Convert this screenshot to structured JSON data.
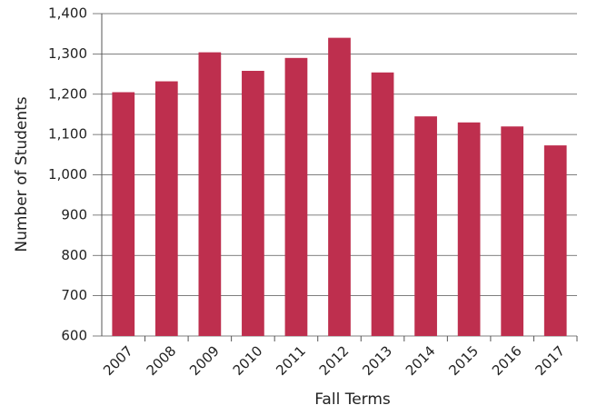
{
  "chart_data": {
    "type": "bar",
    "categories": [
      "2007",
      "2008",
      "2009",
      "2010",
      "2011",
      "2012",
      "2013",
      "2014",
      "2015",
      "2016",
      "2017"
    ],
    "values": [
      1205,
      1232,
      1304,
      1258,
      1290,
      1340,
      1254,
      1145,
      1130,
      1120,
      1073
    ],
    "color": "#be2f4e",
    "ylim": [
      600,
      1400
    ],
    "yticks": [
      600,
      700,
      800,
      900,
      {
        "value": 1000,
        "label": "1,000"
      },
      {
        "value": 1100,
        "label": "1,100"
      },
      {
        "value": 1200,
        "label": "1,200"
      },
      {
        "value": 1300,
        "label": "1,300"
      },
      {
        "value": 1400,
        "label": "1,400"
      }
    ],
    "grid": true,
    "xlabel": "Fall Terms",
    "ylabel": "Number of Students"
  }
}
